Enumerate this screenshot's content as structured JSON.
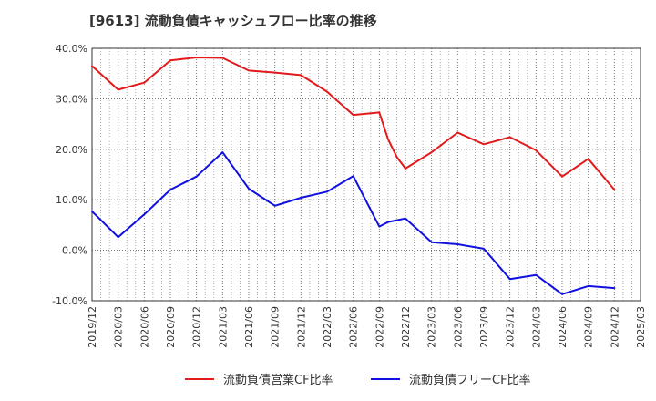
{
  "chart_data": {
    "type": "line",
    "title": "[9613]  流動負債キャッシュフロー比率の推移",
    "xlabel": "",
    "ylabel": "",
    "ylim": [
      -10,
      40
    ],
    "y_ticks": [
      "40.0%",
      "30.0%",
      "20.0%",
      "10.0%",
      "0.0%",
      "-10.0%"
    ],
    "y_tick_values": [
      40,
      30,
      20,
      10,
      0,
      -10
    ],
    "x_ticks": [
      "2019/12",
      "2020/03",
      "2020/06",
      "2020/09",
      "2020/12",
      "2021/03",
      "2021/06",
      "2021/09",
      "2021/12",
      "2022/03",
      "2022/06",
      "2022/09",
      "2022/12",
      "2023/03",
      "2023/06",
      "2023/09",
      "2023/12",
      "2024/03",
      "2024/06",
      "2024/09",
      "2024/12",
      "2025/03"
    ],
    "grid": true,
    "legend_position": "bottom",
    "series": [
      {
        "name": "流動負債営業CF比率",
        "color": "#e31a1c",
        "points": [
          [
            "2019/12",
            36.5
          ],
          [
            "2020/03",
            31.8
          ],
          [
            "2020/06",
            33.2
          ],
          [
            "2020/09",
            37.6
          ],
          [
            "2020/12",
            38.2
          ],
          [
            "2021/03",
            38.1
          ],
          [
            "2021/06",
            35.6
          ],
          [
            "2021/09",
            35.2
          ],
          [
            "2021/12",
            34.7
          ],
          [
            "2022/03",
            31.4
          ],
          [
            "2022/06",
            26.8
          ],
          [
            "2022/09",
            27.3
          ],
          [
            "2022/10",
            22.0
          ],
          [
            "2022/11",
            18.5
          ],
          [
            "2022/12",
            16.2
          ],
          [
            "2023/03",
            19.4
          ],
          [
            "2023/06",
            23.3
          ],
          [
            "2023/09",
            21.0
          ],
          [
            "2023/12",
            22.4
          ],
          [
            "2024/03",
            19.8
          ],
          [
            "2024/06",
            14.6
          ],
          [
            "2024/09",
            18.1
          ],
          [
            "2024/12",
            12.0
          ]
        ]
      },
      {
        "name": "流動負債フリーCF比率",
        "color": "#1010e0",
        "points": [
          [
            "2019/12",
            7.7
          ],
          [
            "2020/03",
            2.6
          ],
          [
            "2020/06",
            7.1
          ],
          [
            "2020/09",
            12.0
          ],
          [
            "2020/12",
            14.6
          ],
          [
            "2021/03",
            19.4
          ],
          [
            "2021/06",
            12.2
          ],
          [
            "2021/09",
            8.8
          ],
          [
            "2021/12",
            10.4
          ],
          [
            "2022/03",
            11.6
          ],
          [
            "2022/06",
            14.7
          ],
          [
            "2022/09",
            4.7
          ],
          [
            "2022/10",
            5.6
          ],
          [
            "2022/12",
            6.3
          ],
          [
            "2023/03",
            1.6
          ],
          [
            "2023/06",
            1.2
          ],
          [
            "2023/09",
            0.3
          ],
          [
            "2023/12",
            -5.7
          ],
          [
            "2024/03",
            -4.9
          ],
          [
            "2024/06",
            -8.7
          ],
          [
            "2024/09",
            -7.1
          ],
          [
            "2024/12",
            -7.5
          ]
        ]
      }
    ]
  }
}
